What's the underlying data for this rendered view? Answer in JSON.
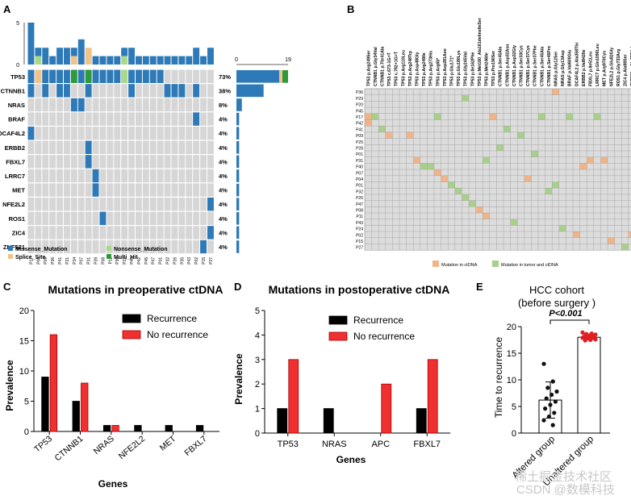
{
  "chart_data": [
    {
      "panel": "A",
      "type": "heatmap",
      "title": "",
      "top_axis": {
        "ticks": [
          "5",
          "0"
        ],
        "ylim": [
          0,
          5
        ]
      },
      "right_axis": {
        "ticks": [
          "0",
          "19"
        ],
        "xlim": [
          0,
          19
        ]
      },
      "samples": [
        "P17",
        "P08",
        "P09",
        "P36",
        "P41",
        "P21",
        "P34",
        "P07",
        "P31",
        "P39",
        "P08",
        "P11",
        "P30",
        "P22",
        "P40",
        "P42",
        "P45",
        "P47",
        "P01",
        "P32",
        "P26",
        "P35",
        "P43",
        "P02",
        "P15",
        "P27"
      ],
      "top_counts": [
        5,
        2,
        2,
        1,
        2,
        2,
        2,
        3,
        2,
        1,
        1,
        1,
        1,
        2,
        2,
        1,
        1,
        1,
        1,
        1,
        1,
        1,
        1,
        2,
        1,
        2
      ],
      "top_other": [
        0,
        1,
        0,
        0,
        0,
        0,
        1,
        0,
        2,
        0,
        0,
        0,
        0,
        1,
        0,
        0,
        0,
        0,
        0,
        0,
        0,
        0,
        0,
        0,
        0,
        0
      ],
      "genes": [
        {
          "name": "TP53",
          "pct": "73%",
          "count": 19
        },
        {
          "name": "CTNNB1",
          "pct": "38%",
          "count": 10
        },
        {
          "name": "NRAS",
          "pct": "8%",
          "count": 2
        },
        {
          "name": "BRAF",
          "pct": "4%",
          "count": 1
        },
        {
          "name": "DCAF4L2",
          "pct": "4%",
          "count": 1
        },
        {
          "name": "ERBB2",
          "pct": "4%",
          "count": 1
        },
        {
          "name": "FBXL7",
          "pct": "4%",
          "count": 1
        },
        {
          "name": "LRRC7",
          "pct": "4%",
          "count": 1
        },
        {
          "name": "MET",
          "pct": "4%",
          "count": 1
        },
        {
          "name": "NFE2L2",
          "pct": "4%",
          "count": 1
        },
        {
          "name": "ROS1",
          "pct": "4%",
          "count": 1
        },
        {
          "name": "ZIC4",
          "pct": "4%",
          "count": 1
        },
        {
          "name": "ZNF521",
          "pct": "4%",
          "count": 1
        }
      ],
      "cells": [
        {
          "g": 0,
          "s": 0,
          "t": "m"
        },
        {
          "g": 0,
          "s": 1,
          "t": "sp"
        },
        {
          "g": 0,
          "s": 2,
          "t": "m"
        },
        {
          "g": 0,
          "s": 3,
          "t": "m"
        },
        {
          "g": 0,
          "s": 4,
          "t": "m"
        },
        {
          "g": 0,
          "s": 5,
          "t": "m"
        },
        {
          "g": 0,
          "s": 6,
          "t": "mh"
        },
        {
          "g": 0,
          "s": 7,
          "t": "m"
        },
        {
          "g": 0,
          "s": 8,
          "t": "mh"
        },
        {
          "g": 0,
          "s": 9,
          "t": "m"
        },
        {
          "g": 0,
          "s": 10,
          "t": "m"
        },
        {
          "g": 0,
          "s": 11,
          "t": "m"
        },
        {
          "g": 0,
          "s": 12,
          "t": "m"
        },
        {
          "g": 0,
          "s": 13,
          "t": "n"
        },
        {
          "g": 0,
          "s": 14,
          "t": "m"
        },
        {
          "g": 0,
          "s": 15,
          "t": "m"
        },
        {
          "g": 0,
          "s": 16,
          "t": "m"
        },
        {
          "g": 0,
          "s": 17,
          "t": "m"
        },
        {
          "g": 0,
          "s": 18,
          "t": "m"
        },
        {
          "g": 1,
          "s": 0,
          "t": "m"
        },
        {
          "g": 1,
          "s": 2,
          "t": "m"
        },
        {
          "g": 1,
          "s": 4,
          "t": "m"
        },
        {
          "g": 1,
          "s": 5,
          "t": "m"
        },
        {
          "g": 1,
          "s": 8,
          "t": "m"
        },
        {
          "g": 1,
          "s": 14,
          "t": "m"
        },
        {
          "g": 1,
          "s": 19,
          "t": "m"
        },
        {
          "g": 1,
          "s": 20,
          "t": "m"
        },
        {
          "g": 1,
          "s": 21,
          "t": "m"
        },
        {
          "g": 1,
          "s": 23,
          "t": "m"
        },
        {
          "g": 2,
          "s": 6,
          "t": "m"
        },
        {
          "g": 2,
          "s": 7,
          "t": "m"
        },
        {
          "g": 3,
          "s": 23,
          "t": "m"
        },
        {
          "g": 4,
          "s": 0,
          "t": "m"
        },
        {
          "g": 5,
          "s": 8,
          "t": "m"
        },
        {
          "g": 6,
          "s": 8,
          "t": "m"
        },
        {
          "g": 7,
          "s": 9,
          "t": "m"
        },
        {
          "g": 8,
          "s": 9,
          "t": "m"
        },
        {
          "g": 9,
          "s": 25,
          "t": "m"
        },
        {
          "g": 10,
          "s": 10,
          "t": "m"
        },
        {
          "g": 11,
          "s": 25,
          "t": "m"
        },
        {
          "g": 12,
          "s": 24,
          "t": "m"
        }
      ],
      "legend": [
        {
          "label": "Missense_Mutation",
          "color": "#2e7ab8",
          "key": "m"
        },
        {
          "label": "Nonsense_Mutation",
          "color": "#a8d88a",
          "key": "n"
        },
        {
          "label": "Splice_Site",
          "color": "#f0c38a",
          "key": "sp"
        },
        {
          "label": "Multi_Hit",
          "color": "#2e9a3a",
          "key": "mh"
        }
      ]
    },
    {
      "panel": "B",
      "type": "heatmap",
      "columns": [
        "TP53 p.Arg249Ser",
        "CTNNB1 p.Gly34Val",
        "CTNNB1 p.Thr41Ala",
        "TP53 c.673-1G>T",
        "TP53 c.782+1G>T",
        "TP53 p.Arg110Leu",
        "TP53 p.Arg248Trp",
        "TP53 p.Asp48Gly",
        "TP53 p.Arg249lle",
        "TP53 p.Arg273His",
        "TP53 p.Arg65*",
        "TP53 p.Asp281Asn",
        "TP53 p.Glu171*",
        "TP53 p.Glu180Lys",
        "TP53 p.Gly245Val",
        "TP53 p.Ile162Phe",
        "TP53 p.Met160_Ala161delinsIleSer",
        "TP53 p.Met246Ile",
        "TP53 p.Pro190Ser",
        "CTNNB1 p.Ser45Ala",
        "CTNNB1 p.Asp32Asn",
        "CTNNB1 p.Asp32Gly",
        "CTNNB1 p.Ser33Cys",
        "CTNNB1 p.Ser37Cys",
        "CTNNB1 p.Ser37Phe",
        "CTNNB1 p.Ser45Ala",
        "CTNNB1 p.Ser45Pro",
        "NRAS p.Gly12Ser",
        "NRAS p.Gly13Asp",
        "BRAF p.Val600Glu",
        "DCAF4L2 p.Ala358Thr",
        "ERBB2 p.Val842Ile",
        "FBXL7 p.Ile51Leu",
        "LRRC7 p.Gln1090Leu",
        "MET p.Arg970Cys",
        "NFE2L2 p.Glu82Gly",
        "ROS1 p.Gly733Arg",
        "ZIC4 p.Ala88Ser",
        "ZNF521 p.Ala779Val"
      ],
      "rows": [
        "P36",
        "P29",
        "P20",
        "P45",
        "P17",
        "P42",
        "P41",
        "P09",
        "P25",
        "P28",
        "P01",
        "P31",
        "P40",
        "P07",
        "P04",
        "P01",
        "P32",
        "P26",
        "P47",
        "P08",
        "P11",
        "P43",
        "P24",
        "P02",
        "P15",
        "P27"
      ],
      "cells": [
        {
          "r": 0,
          "c": 27,
          "t": "c"
        },
        {
          "r": 1,
          "c": 14,
          "t": "b"
        },
        {
          "r": 4,
          "c": 0,
          "t": "c"
        },
        {
          "r": 4,
          "c": 1,
          "t": "b"
        },
        {
          "r": 4,
          "c": 10,
          "t": "b"
        },
        {
          "r": 4,
          "c": 18,
          "t": "c"
        },
        {
          "r": 4,
          "c": 25,
          "t": "b"
        },
        {
          "r": 4,
          "c": 29,
          "t": "b"
        },
        {
          "r": 4,
          "c": 33,
          "t": "b"
        },
        {
          "r": 5,
          "c": 0,
          "t": "c"
        },
        {
          "r": 6,
          "c": 2,
          "t": "b"
        },
        {
          "r": 6,
          "c": 20,
          "t": "b"
        },
        {
          "r": 7,
          "c": 3,
          "t": "c"
        },
        {
          "r": 7,
          "c": 6,
          "t": "c"
        },
        {
          "r": 7,
          "c": 22,
          "t": "b"
        },
        {
          "r": 9,
          "c": 19,
          "t": "b"
        },
        {
          "r": 10,
          "c": 24,
          "t": "b"
        },
        {
          "r": 11,
          "c": 7,
          "t": "c"
        },
        {
          "r": 11,
          "c": 17,
          "t": "b"
        },
        {
          "r": 11,
          "c": 32,
          "t": "c"
        },
        {
          "r": 11,
          "c": 34,
          "t": "c"
        },
        {
          "r": 12,
          "c": 8,
          "t": "b"
        },
        {
          "r": 12,
          "c": 9,
          "t": "b"
        },
        {
          "r": 12,
          "c": 31,
          "t": "c"
        },
        {
          "r": 13,
          "c": 10,
          "t": "c"
        },
        {
          "r": 14,
          "c": 11,
          "t": "c"
        },
        {
          "r": 14,
          "c": 23,
          "t": "c"
        },
        {
          "r": 15,
          "c": 12,
          "t": "b"
        },
        {
          "r": 15,
          "c": 27,
          "t": "b"
        },
        {
          "r": 16,
          "c": 13,
          "t": "b"
        },
        {
          "r": 16,
          "c": 26,
          "t": "b"
        },
        {
          "r": 17,
          "c": 14,
          "t": "b"
        },
        {
          "r": 18,
          "c": 15,
          "t": "b"
        },
        {
          "r": 19,
          "c": 16,
          "t": "c"
        },
        {
          "r": 20,
          "c": 17,
          "t": "c"
        },
        {
          "r": 21,
          "c": 21,
          "t": "b"
        },
        {
          "r": 22,
          "c": 28,
          "t": "b"
        },
        {
          "r": 23,
          "c": 30,
          "t": "c"
        },
        {
          "r": 23,
          "c": 38,
          "t": "c"
        },
        {
          "r": 24,
          "c": 35,
          "t": "c"
        },
        {
          "r": 25,
          "c": 37,
          "t": "b"
        }
      ],
      "legend": [
        {
          "label": "Mutation in ctDNA",
          "color": "#f0b488"
        },
        {
          "label": "Mutation in tumor and ctDNA",
          "color": "#a8d08a"
        }
      ]
    },
    {
      "panel": "C",
      "type": "bar",
      "title": "Mutations in preoperative ctDNA",
      "xlabel": "Genes",
      "ylabel": "Prevalence",
      "ylim": [
        0,
        20
      ],
      "yticks": [
        "0",
        "5",
        "10",
        "15",
        "20"
      ],
      "categories": [
        "TP53",
        "CTNNB1",
        "NRAS",
        "NFE2L2",
        "MET",
        "FBXL7"
      ],
      "series": [
        {
          "name": "Recurrence",
          "color": "#000000",
          "values": [
            9,
            5,
            1,
            1,
            1,
            1
          ]
        },
        {
          "name": "No recurrence",
          "color": "#f03030",
          "values": [
            16,
            8,
            1,
            0,
            0,
            0
          ]
        }
      ]
    },
    {
      "panel": "D",
      "type": "bar",
      "title": "Mutations in postoperative ctDNA",
      "xlabel": "Genes",
      "ylabel": "Prevalence",
      "ylim": [
        0,
        5
      ],
      "yticks": [
        "0",
        "1",
        "2",
        "3",
        "4",
        "5"
      ],
      "categories": [
        "TP53",
        "NRAS",
        "APC",
        "FBXL7"
      ],
      "series": [
        {
          "name": "Recurrence",
          "color": "#000000",
          "values": [
            1,
            1,
            0,
            1
          ]
        },
        {
          "name": "No recurrence",
          "color": "#f03030",
          "values": [
            3,
            0,
            2,
            3
          ]
        }
      ]
    },
    {
      "panel": "E",
      "type": "scatter",
      "title": "HCC cohort",
      "subtitle": "(before surgery )",
      "ylabel": "Time to recurrence",
      "ylim": [
        0,
        20
      ],
      "yticks": [
        "0",
        "5",
        "10",
        "15",
        "20"
      ],
      "pvalue": "P<0.001",
      "categories": [
        "Altered group",
        "Unaltered group"
      ],
      "means": [
        6.2,
        18
      ],
      "sd": [
        3.4,
        0.4
      ],
      "points": [
        [
          13,
          9.7,
          8.5,
          7.8,
          7.2,
          6.5,
          5.9,
          5.3,
          4.6,
          3.8,
          3.1,
          2.4,
          1.5
        ],
        [
          18.9,
          18.7,
          18.6,
          18.5,
          18.4,
          18.3,
          18.2,
          18.1,
          18.1,
          18.0,
          17.9,
          17.9,
          17.8,
          17.7,
          17.6,
          17.5,
          17.4
        ]
      ]
    }
  ],
  "panel_letters": [
    "A",
    "B",
    "C",
    "D",
    "E"
  ],
  "watermark": [
    "稀土掘金技术社区",
    "CSDN @数模科技"
  ]
}
